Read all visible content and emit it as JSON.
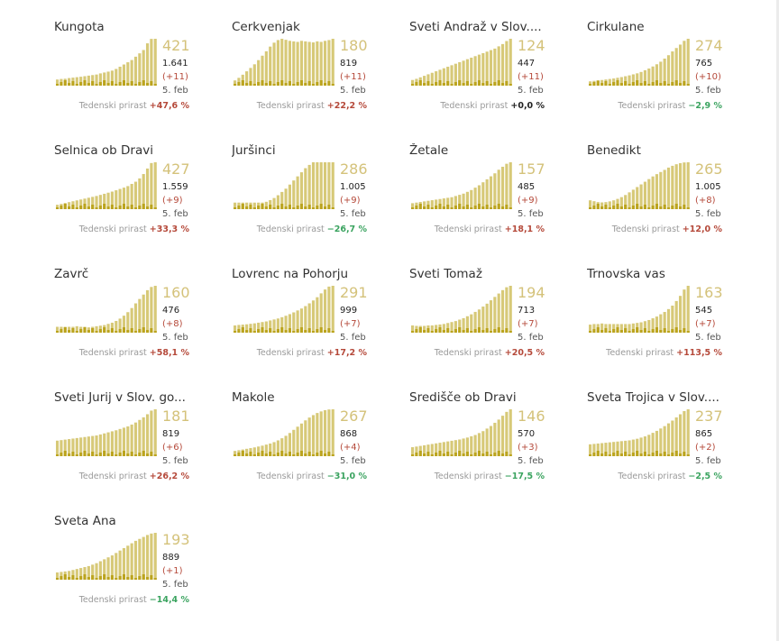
{
  "growth_label": "Tedenski prirast",
  "date_label": "5. feb",
  "colors": {
    "bar": "#d7c978",
    "bar_dark": "#bba41e",
    "up": "#b5493a",
    "down": "#3aa35f",
    "active": "#d4c27a"
  },
  "municipalities": [
    {
      "name": "Kungota",
      "active": "421",
      "total": "1.641",
      "delta": "(+11)",
      "growth": "+47,6 %",
      "trend": "up"
    },
    {
      "name": "Cerkvenjak",
      "active": "180",
      "total": "819",
      "delta": "(+11)",
      "growth": "+22,2 %",
      "trend": "up"
    },
    {
      "name": "Sveti Andraž v Slov....",
      "active": "124",
      "total": "447",
      "delta": "(+11)",
      "growth": "+0,0 %",
      "trend": "zero"
    },
    {
      "name": "Cirkulane",
      "active": "274",
      "total": "765",
      "delta": "(+10)",
      "growth": "−2,9 %",
      "trend": "down"
    },
    {
      "name": "Selnica ob Dravi",
      "active": "427",
      "total": "1.559",
      "delta": "(+9)",
      "growth": "+33,3 %",
      "trend": "up"
    },
    {
      "name": "Juršinci",
      "active": "286",
      "total": "1.005",
      "delta": "(+9)",
      "growth": "−26,7 %",
      "trend": "down"
    },
    {
      "name": "Žetale",
      "active": "157",
      "total": "485",
      "delta": "(+9)",
      "growth": "+18,1 %",
      "trend": "up"
    },
    {
      "name": "Benedikt",
      "active": "265",
      "total": "1.005",
      "delta": "(+8)",
      "growth": "+12,0 %",
      "trend": "up"
    },
    {
      "name": "Zavrč",
      "active": "160",
      "total": "476",
      "delta": "(+8)",
      "growth": "+58,1 %",
      "trend": "up"
    },
    {
      "name": "Lovrenc na Pohorju",
      "active": "291",
      "total": "999",
      "delta": "(+7)",
      "growth": "+17,2 %",
      "trend": "up"
    },
    {
      "name": "Sveti Tomaž",
      "active": "194",
      "total": "713",
      "delta": "(+7)",
      "growth": "+20,5 %",
      "trend": "up"
    },
    {
      "name": "Trnovska vas",
      "active": "163",
      "total": "545",
      "delta": "(+7)",
      "growth": "+113,5 %",
      "trend": "up"
    },
    {
      "name": "Sveti Jurij v Slov. go...",
      "active": "181",
      "total": "819",
      "delta": "(+6)",
      "growth": "+26,2 %",
      "trend": "up"
    },
    {
      "name": "Makole",
      "active": "267",
      "total": "868",
      "delta": "(+4)",
      "growth": "−31,0 %",
      "trend": "down"
    },
    {
      "name": "Središče ob Dravi",
      "active": "146",
      "total": "570",
      "delta": "(+3)",
      "growth": "−17,5 %",
      "trend": "down"
    },
    {
      "name": "Sveta Trojica v Slov....",
      "active": "237",
      "total": "865",
      "delta": "(+2)",
      "growth": "−2,5 %",
      "trend": "down"
    },
    {
      "name": "Sveta Ana",
      "active": "193",
      "total": "889",
      "delta": "(+1)",
      "growth": "−14,4 %",
      "trend": "down"
    }
  ],
  "chart_data": [
    {
      "type": "bar",
      "title": "Kungota",
      "values": [
        55,
        60,
        62,
        68,
        72,
        76,
        80,
        85,
        90,
        95,
        100,
        110,
        118,
        126,
        135,
        150,
        170,
        190,
        210,
        230,
        260,
        290,
        320,
        380,
        420,
        421
      ]
    },
    {
      "type": "bar",
      "title": "Cerkvenjak",
      "values": [
        20,
        30,
        42,
        55,
        68,
        82,
        98,
        115,
        132,
        150,
        165,
        175,
        180,
        176,
        172,
        170,
        168,
        172,
        170,
        168,
        166,
        170,
        168,
        172,
        175,
        180
      ]
    },
    {
      "type": "bar",
      "title": "Sveti Andraž v Slov....",
      "values": [
        15,
        18,
        22,
        26,
        30,
        34,
        38,
        42,
        46,
        50,
        54,
        58,
        62,
        66,
        70,
        74,
        78,
        82,
        86,
        90,
        94,
        98,
        104,
        110,
        118,
        124
      ]
    },
    {
      "type": "bar",
      "title": "Cirkulane",
      "values": [
        25,
        28,
        30,
        33,
        36,
        39,
        42,
        46,
        50,
        55,
        60,
        66,
        72,
        80,
        90,
        100,
        112,
        125,
        140,
        158,
        178,
        200,
        220,
        240,
        262,
        274
      ]
    },
    {
      "type": "bar",
      "title": "Selnica ob Dravi",
      "values": [
        40,
        48,
        56,
        64,
        72,
        80,
        88,
        96,
        104,
        112,
        120,
        130,
        140,
        150,
        160,
        172,
        184,
        196,
        210,
        230,
        250,
        280,
        320,
        370,
        420,
        427
      ]
    },
    {
      "type": "bar",
      "title": "Juršinci",
      "values": [
        40,
        40,
        40,
        40,
        40,
        40,
        40,
        40,
        45,
        55,
        68,
        85,
        105,
        125,
        150,
        175,
        200,
        225,
        250,
        270,
        286,
        286,
        286,
        286,
        286,
        286
      ]
    },
    {
      "type": "bar",
      "title": "Žetale",
      "values": [
        20,
        22,
        24,
        26,
        28,
        30,
        32,
        34,
        36,
        38,
        40,
        44,
        48,
        52,
        58,
        64,
        72,
        80,
        90,
        100,
        110,
        120,
        132,
        142,
        152,
        157
      ]
    },
    {
      "type": "bar",
      "title": "Benedikt",
      "values": [
        50,
        45,
        40,
        38,
        40,
        44,
        50,
        58,
        68,
        80,
        95,
        110,
        125,
        140,
        155,
        170,
        185,
        198,
        210,
        222,
        235,
        245,
        254,
        260,
        264,
        265
      ]
    },
    {
      "type": "bar",
      "title": "Zavrč",
      "values": [
        20,
        20,
        20,
        20,
        20,
        22,
        20,
        20,
        18,
        20,
        22,
        24,
        26,
        30,
        34,
        40,
        48,
        58,
        70,
        84,
        100,
        115,
        130,
        145,
        156,
        160
      ]
    },
    {
      "type": "bar",
      "title": "Lovrenc na Pohorju",
      "values": [
        45,
        48,
        50,
        52,
        55,
        58,
        62,
        66,
        70,
        76,
        82,
        88,
        96,
        105,
        115,
        126,
        138,
        150,
        165,
        182,
        200,
        220,
        244,
        268,
        286,
        291
      ]
    },
    {
      "type": "bar",
      "title": "Sveti Tomaž",
      "values": [
        30,
        28,
        28,
        28,
        30,
        30,
        32,
        34,
        36,
        40,
        44,
        48,
        54,
        60,
        68,
        76,
        86,
        96,
        108,
        120,
        134,
        148,
        162,
        176,
        188,
        194
      ]
    },
    {
      "type": "bar",
      "title": "Trnovska vas",
      "values": [
        28,
        30,
        30,
        32,
        30,
        30,
        30,
        30,
        30,
        30,
        30,
        32,
        34,
        36,
        40,
        44,
        50,
        56,
        64,
        72,
        82,
        94,
        110,
        128,
        150,
        163
      ]
    },
    {
      "type": "bar",
      "title": "Sveti Jurij v Slov. go...",
      "values": [
        60,
        62,
        64,
        66,
        68,
        70,
        72,
        74,
        76,
        78,
        80,
        84,
        88,
        92,
        96,
        100,
        105,
        110,
        115,
        122,
        130,
        140,
        150,
        162,
        176,
        181
      ]
    },
    {
      "type": "bar",
      "title": "Makole",
      "values": [
        30,
        34,
        38,
        42,
        46,
        50,
        55,
        60,
        66,
        72,
        80,
        90,
        102,
        116,
        132,
        150,
        168,
        186,
        204,
        220,
        234,
        246,
        255,
        262,
        266,
        267
      ]
    },
    {
      "type": "bar",
      "title": "Središče ob Dravi",
      "values": [
        28,
        30,
        32,
        34,
        36,
        38,
        40,
        42,
        44,
        46,
        48,
        50,
        52,
        55,
        58,
        62,
        66,
        72,
        78,
        86,
        94,
        104,
        114,
        126,
        138,
        146
      ]
    },
    {
      "type": "bar",
      "title": "Sveta Trojica v Slov....",
      "values": [
        60,
        62,
        64,
        66,
        68,
        70,
        72,
        74,
        76,
        78,
        80,
        84,
        88,
        94,
        100,
        108,
        118,
        128,
        140,
        152,
        166,
        180,
        196,
        212,
        228,
        237
      ]
    },
    {
      "type": "bar",
      "title": "Sveta Ana",
      "values": [
        30,
        32,
        34,
        36,
        40,
        44,
        48,
        52,
        56,
        62,
        68,
        76,
        84,
        92,
        100,
        110,
        120,
        130,
        140,
        150,
        160,
        168,
        176,
        184,
        190,
        193
      ]
    }
  ]
}
